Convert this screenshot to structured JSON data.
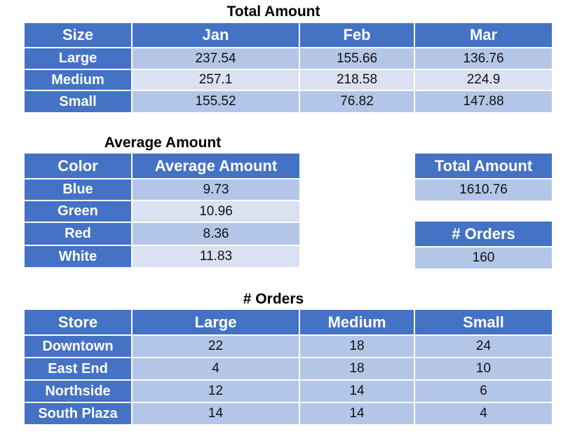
{
  "total_by_size": {
    "title": "Total Amount",
    "headers": [
      "Size",
      "Jan",
      "Feb",
      "Mar"
    ],
    "rows": [
      [
        "Large",
        "237.54",
        "155.66",
        "136.76"
      ],
      [
        "Medium",
        "257.1",
        "218.58",
        "224.9"
      ],
      [
        "Small",
        "155.52",
        "76.82",
        "147.88"
      ]
    ]
  },
  "average_by_color": {
    "title": "Average Amount",
    "headers": [
      "Color",
      "Average Amount"
    ],
    "rows": [
      [
        "Blue",
        "9.73"
      ],
      [
        "Green",
        "10.96"
      ],
      [
        "Red",
        "8.36"
      ],
      [
        "White",
        "11.83"
      ]
    ]
  },
  "grand_total": {
    "header": "Total Amount",
    "value": "1610.76"
  },
  "order_count": {
    "header": "# Orders",
    "value": "160"
  },
  "orders_by_store": {
    "title": "# Orders",
    "headers": [
      "Store",
      "Large",
      "Medium",
      "Small"
    ],
    "rows": [
      [
        "Downtown",
        "22",
        "18",
        "24"
      ],
      [
        "East End",
        "4",
        "18",
        "10"
      ],
      [
        "Northside",
        "12",
        "14",
        "6"
      ],
      [
        "South Plaza",
        "14",
        "14",
        "4"
      ]
    ]
  },
  "colors": {
    "header_blue": "#4472c4",
    "band_dark": "#b4c6e7",
    "band_light": "#d9e1f2"
  }
}
